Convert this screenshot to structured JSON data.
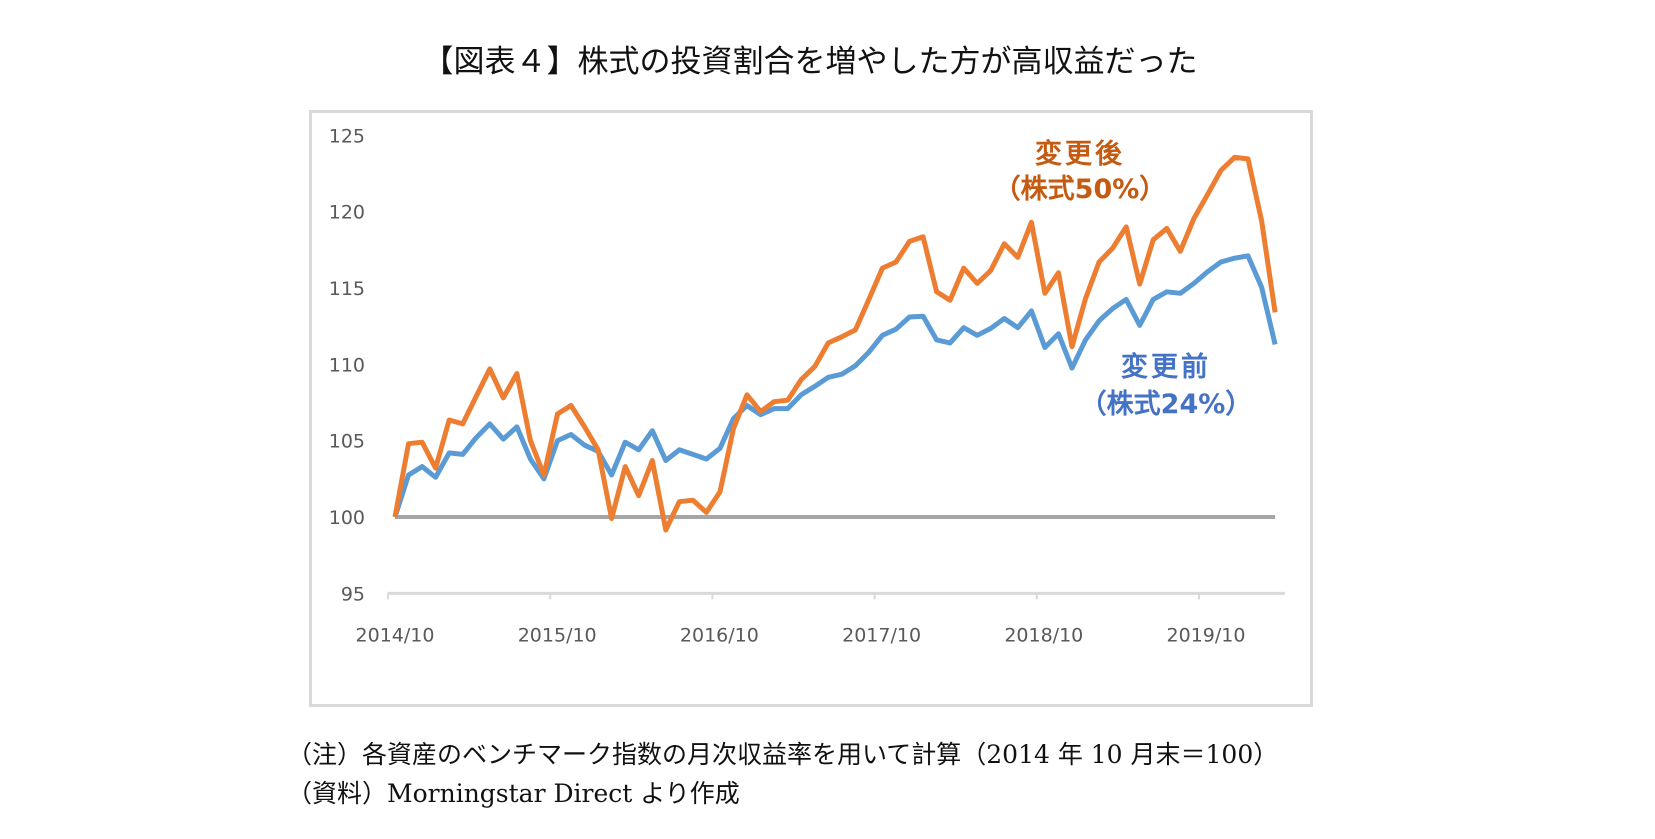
{
  "title": "【図表４】株式の投資割合を増やした方が高収益だった",
  "notes": {
    "note": "（注）各資産のベンチマーク指数の月次収益率を用いて計算（2014 年 10 月末＝100）",
    "source": "（資料）Morningstar Direct より作成"
  },
  "chart_data": {
    "type": "line",
    "title": "",
    "xlabel": "",
    "ylabel": "",
    "x_start": "2014/10",
    "x_end": "2020/03",
    "x_frequency": "monthly",
    "x_tick_labels": [
      "2014/10",
      "2015/10",
      "2016/10",
      "2017/10",
      "2018/10",
      "2019/10"
    ],
    "y_tick_labels": [
      "95",
      "100",
      "105",
      "110",
      "115",
      "120",
      "125"
    ],
    "ylim": [
      95,
      125
    ],
    "grid": false,
    "legend": "none (inline labels)",
    "baseline": {
      "value": 100,
      "color": "#a5a5a5"
    },
    "series": [
      {
        "name": "変更後",
        "name_sub": "（株式50%）",
        "color": "#ed7d31",
        "label_color": "#c55a11",
        "values": [
          100,
          104.8,
          104.9,
          103.2,
          106.35,
          106.1,
          107.9,
          109.7,
          107.8,
          109.4,
          105.0,
          102.75,
          106.75,
          107.3,
          105.9,
          104.4,
          99.9,
          103.3,
          101.4,
          103.7,
          99.15,
          101.0,
          101.1,
          100.3,
          101.65,
          105.8,
          108.0,
          106.9,
          107.55,
          107.65,
          109.0,
          109.85,
          111.4,
          111.8,
          112.25,
          114.25,
          116.3,
          116.7,
          118.05,
          118.35,
          114.75,
          114.2,
          116.3,
          115.3,
          116.15,
          117.9,
          117.0,
          119.3,
          114.65,
          116.0,
          111.15,
          114.3,
          116.7,
          117.6,
          119.0,
          115.25,
          118.15,
          118.9,
          117.4,
          119.55,
          121.1,
          122.7,
          123.55,
          123.45,
          119.4,
          113.4
        ]
      },
      {
        "name": "変更前",
        "name_sub": "（株式24%）",
        "color": "#5b9bd5",
        "label_color": "#4472c4",
        "values": [
          100,
          102.75,
          103.3,
          102.6,
          104.2,
          104.1,
          105.2,
          106.1,
          105.1,
          105.9,
          103.8,
          102.5,
          105.0,
          105.4,
          104.7,
          104.3,
          102.75,
          104.9,
          104.4,
          105.65,
          103.7,
          104.4,
          104.1,
          103.8,
          104.5,
          106.45,
          107.3,
          106.7,
          107.1,
          107.1,
          108.0,
          108.55,
          109.15,
          109.35,
          109.9,
          110.8,
          111.9,
          112.3,
          113.1,
          113.15,
          111.6,
          111.4,
          112.4,
          111.9,
          112.35,
          113.0,
          112.4,
          113.5,
          111.1,
          112.0,
          109.75,
          111.6,
          112.85,
          113.65,
          114.25,
          112.55,
          114.25,
          114.75,
          114.65,
          115.3,
          116.05,
          116.7,
          116.95,
          117.1,
          115.05,
          111.3
        ]
      }
    ]
  }
}
